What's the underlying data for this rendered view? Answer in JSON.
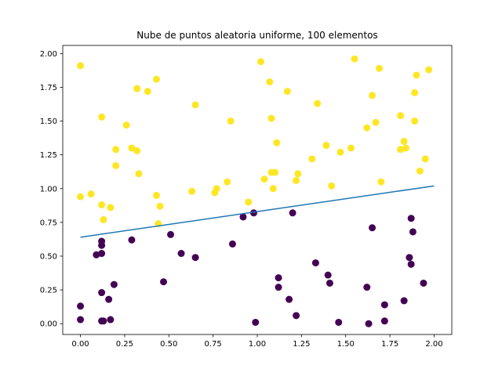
{
  "chart_data": {
    "type": "scatter",
    "title": "Nube de puntos aleatoria uniforme, 100 elementos",
    "xlabel": "",
    "ylabel": "",
    "xlim": [
      -0.1,
      2.1
    ],
    "ylim": [
      -0.08,
      2.06
    ],
    "x_ticks": [
      0.0,
      0.25,
      0.5,
      0.75,
      1.0,
      1.25,
      1.5,
      1.75,
      2.0
    ],
    "x_tick_labels": [
      "0.00",
      "0.25",
      "0.50",
      "0.75",
      "1.00",
      "1.25",
      "1.50",
      "1.75",
      "2.00"
    ],
    "y_ticks": [
      0.0,
      0.25,
      0.5,
      0.75,
      1.0,
      1.25,
      1.5,
      1.75,
      2.0
    ],
    "y_tick_labels": [
      "0.00",
      "0.25",
      "0.50",
      "0.75",
      "1.00",
      "1.25",
      "1.50",
      "1.75",
      "2.00"
    ],
    "grid": false,
    "colors": {
      "above": "#fde725",
      "below": "#440154",
      "line": "#1f77b4"
    },
    "line": {
      "x": [
        0.0,
        2.0
      ],
      "y": [
        0.64,
        1.02
      ]
    },
    "series": [
      {
        "group": "above",
        "x": [
          0.0,
          0.0,
          0.06,
          0.12,
          0.12,
          0.13,
          0.17,
          0.2,
          0.2,
          0.26,
          0.29,
          0.32,
          0.32,
          0.33,
          0.38,
          0.43,
          0.43,
          0.44,
          0.45,
          0.63,
          0.65,
          0.76,
          0.77,
          0.83,
          0.85,
          0.95,
          1.02,
          1.04,
          1.07,
          1.08,
          1.08,
          1.09,
          1.1,
          1.11,
          1.17,
          1.22,
          1.23,
          1.31,
          1.34,
          1.39,
          1.42,
          1.47,
          1.53,
          1.55,
          1.62,
          1.65,
          1.67,
          1.69,
          1.7,
          1.81,
          1.81,
          1.83,
          1.84,
          1.89,
          1.89,
          1.9,
          1.92,
          1.95,
          1.97
        ],
        "y": [
          1.91,
          0.94,
          0.96,
          1.53,
          0.88,
          0.77,
          0.86,
          1.29,
          1.17,
          1.47,
          1.3,
          1.74,
          1.28,
          1.11,
          1.72,
          1.81,
          0.95,
          0.74,
          0.87,
          0.98,
          1.62,
          0.97,
          1.0,
          1.05,
          1.5,
          0.9,
          1.94,
          1.07,
          1.79,
          1.52,
          1.12,
          1.0,
          1.12,
          1.34,
          1.72,
          1.06,
          1.11,
          1.22,
          1.63,
          1.32,
          1.02,
          1.27,
          1.3,
          1.96,
          1.45,
          1.69,
          1.49,
          1.89,
          1.05,
          1.54,
          1.29,
          1.35,
          1.3,
          1.71,
          1.5,
          1.84,
          1.13,
          1.22,
          1.88
        ]
      },
      {
        "group": "below",
        "x": [
          0.0,
          0.0,
          0.09,
          0.12,
          0.12,
          0.12,
          0.12,
          0.12,
          0.13,
          0.16,
          0.17,
          0.19,
          0.29,
          0.47,
          0.51,
          0.57,
          0.65,
          0.86,
          0.92,
          0.98,
          0.99,
          1.12,
          1.12,
          1.18,
          1.2,
          1.22,
          1.33,
          1.4,
          1.41,
          1.46,
          1.62,
          1.63,
          1.65,
          1.72,
          1.72,
          1.83,
          1.86,
          1.87,
          1.87,
          1.88,
          1.94
        ],
        "y": [
          0.13,
          0.03,
          0.51,
          0.61,
          0.58,
          0.52,
          0.23,
          0.02,
          0.02,
          0.18,
          0.03,
          0.29,
          0.62,
          0.31,
          0.66,
          0.52,
          0.49,
          0.59,
          0.79,
          0.82,
          0.01,
          0.34,
          0.27,
          0.18,
          0.82,
          0.06,
          0.45,
          0.36,
          0.3,
          0.01,
          0.27,
          0.0,
          0.71,
          0.14,
          0.02,
          0.17,
          0.49,
          0.78,
          0.44,
          0.68,
          0.3
        ]
      }
    ]
  }
}
